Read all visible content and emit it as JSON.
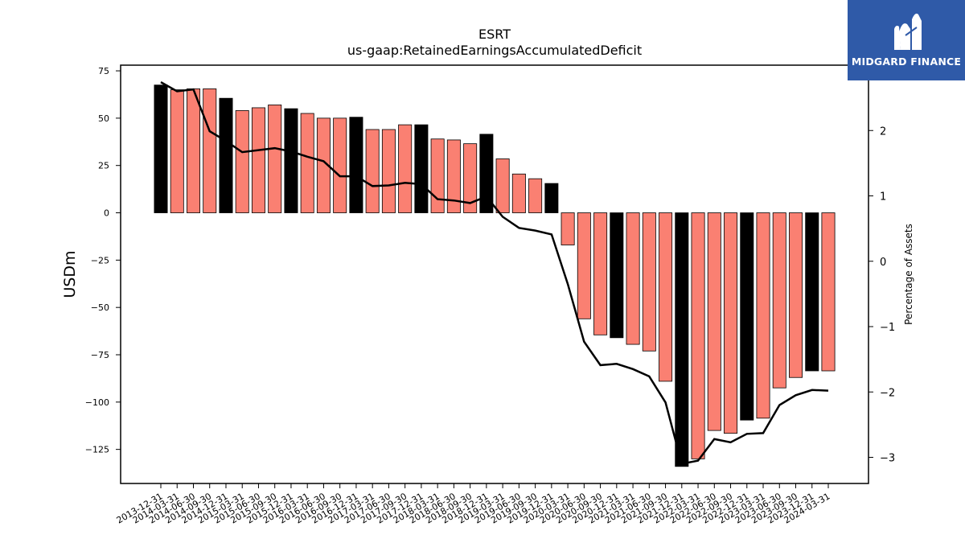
{
  "brand": {
    "name": "MIDGARD FINANCE",
    "logo_icon": "midgard-mountain-logo-icon",
    "color": "#2f5aa8"
  },
  "chart_data": {
    "type": "bar",
    "title": "ESRT",
    "subtitle": "us-gaap:RetainedEarningsAccumulatedDeficit",
    "ylabel": "USDm",
    "y2label": "Percentage of Assets",
    "ylim": [
      -143,
      78
    ],
    "y2lim": [
      -3.4,
      3.0
    ],
    "yticks": [
      75,
      50,
      25,
      0,
      -25,
      -50,
      -75,
      -100,
      -125
    ],
    "y2ticks": [
      2,
      1,
      0,
      -1,
      -2,
      -3
    ],
    "grid": false,
    "colors": {
      "quarter_bar": "#fa8072",
      "year_end_bar": "#000000",
      "line": "#000000"
    },
    "categories": [
      "2013-12-31",
      "2014-03-31",
      "2014-06-30",
      "2014-09-30",
      "2014-12-31",
      "2015-03-31",
      "2015-06-30",
      "2015-09-30",
      "2015-12-31",
      "2016-03-31",
      "2016-06-30",
      "2016-09-30",
      "2016-12-31",
      "2017-03-31",
      "2017-06-30",
      "2017-09-30",
      "2017-12-31",
      "2018-03-31",
      "2018-06-30",
      "2018-09-30",
      "2018-12-31",
      "2019-03-31",
      "2019-06-30",
      "2019-09-30",
      "2019-12-31",
      "2020-03-31",
      "2020-06-30",
      "2020-09-30",
      "2020-12-31",
      "2021-03-31",
      "2021-06-30",
      "2021-09-30",
      "2021-12-31",
      "2022-03-31",
      "2022-06-30",
      "2022-09-30",
      "2022-12-31",
      "2023-03-31",
      "2023-06-30",
      "2023-09-30",
      "2023-12-31",
      "2024-03-31"
    ],
    "series": [
      {
        "kind": "bar",
        "values": [
          67.5,
          65,
          65.5,
          65.5,
          60.5,
          54,
          55.5,
          57,
          55,
          52.5,
          50,
          50,
          50.5,
          44,
          44,
          46.5,
          46.5,
          39,
          38.5,
          36.5,
          41.5,
          28.5,
          20.5,
          18,
          15.5,
          -17,
          -56,
          -64.5,
          -66,
          -69.5,
          -73,
          -89,
          -134,
          -130,
          -115,
          -116.5,
          -109.5,
          -108.5,
          -92.5,
          -87,
          -83.5,
          -83.5
        ]
      },
      {
        "kind": "line",
        "axis": "right",
        "values": [
          2.74,
          2.6,
          2.63,
          1.99,
          1.84,
          1.67,
          1.7,
          1.73,
          1.68,
          1.6,
          1.53,
          1.3,
          1.3,
          1.15,
          1.16,
          1.2,
          1.18,
          0.95,
          0.93,
          0.89,
          0.99,
          0.68,
          0.51,
          0.47,
          0.41,
          -0.35,
          -1.23,
          -1.59,
          -1.57,
          -1.65,
          -1.76,
          -2.16,
          -3.1,
          -3.05,
          -2.72,
          -2.77,
          -2.64,
          -2.63,
          -2.2,
          -2.05,
          -1.97,
          -1.98
        ]
      }
    ]
  }
}
